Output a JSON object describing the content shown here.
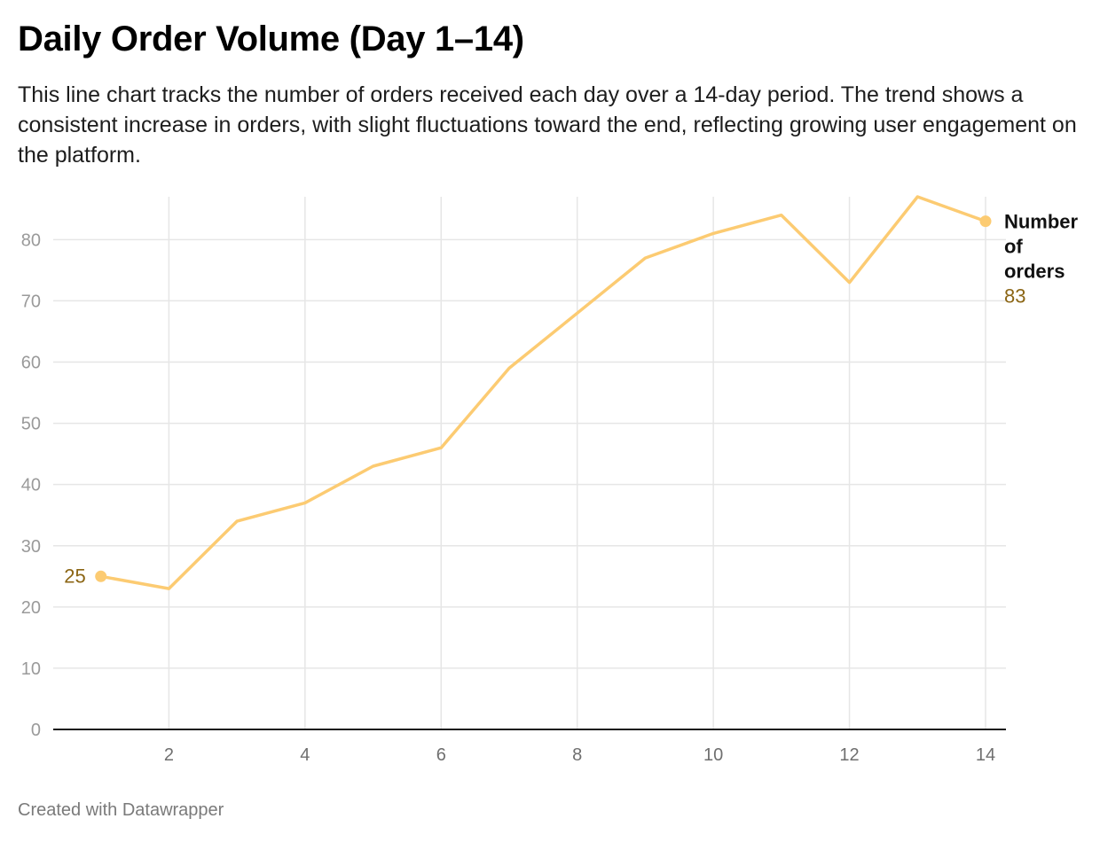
{
  "title": "Daily Order Volume (Day 1–14)",
  "subtitle": "This line chart tracks the number of orders received each day over a 14-day period. The trend shows a consistent increase in orders, with slight fluctuations toward the end, reflecting growing user engagement on the platform.",
  "footer": "Created with Datawrapper",
  "colors": {
    "line": "#fccb72",
    "value_label": "#8b6514",
    "grid": "#e6e6e6"
  },
  "chart_data": {
    "type": "line",
    "title": "Daily Order Volume (Day 1–14)",
    "xlabel": "",
    "ylabel": "",
    "x": [
      1,
      2,
      3,
      4,
      5,
      6,
      7,
      8,
      9,
      10,
      11,
      12,
      13,
      14
    ],
    "series": [
      {
        "name": "Number of orders",
        "values": [
          25,
          23,
          34,
          37,
          43,
          46,
          59,
          68,
          77,
          81,
          84,
          73,
          87,
          83
        ]
      }
    ],
    "xticks": [
      2,
      4,
      6,
      8,
      10,
      12,
      14
    ],
    "yticks": [
      0,
      10,
      20,
      30,
      40,
      50,
      60,
      70,
      80
    ],
    "xlim": [
      0.3,
      14.3
    ],
    "ylim": [
      0,
      87
    ],
    "start_label": "25",
    "end_label": "83",
    "series_label_lines": [
      "Number",
      "of",
      "orders"
    ],
    "grid": true,
    "legend": "inline-right"
  }
}
